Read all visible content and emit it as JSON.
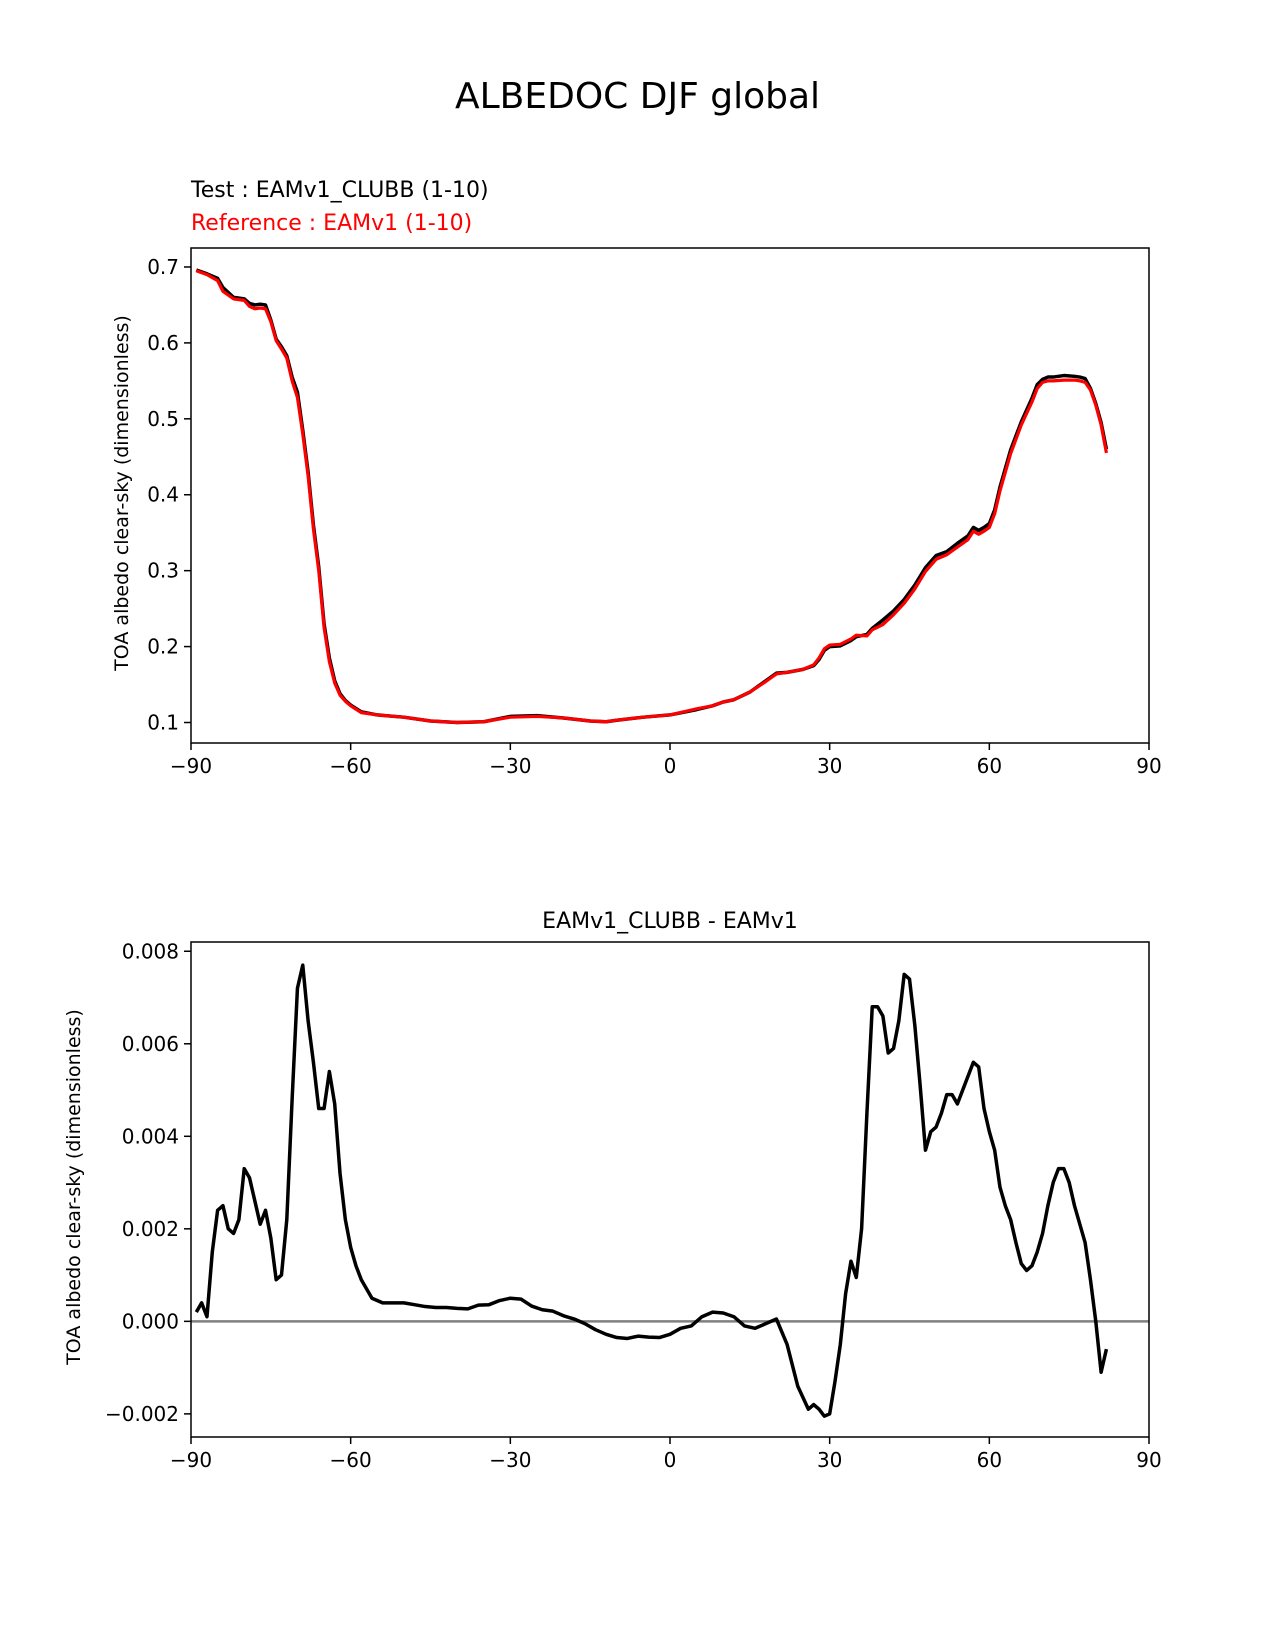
{
  "figure": {
    "suptitle": "ALBEDOC DJF global"
  },
  "colors": {
    "test": "#000000",
    "reference": "#ff0000",
    "zero_line": "#808080"
  },
  "chart_data": [
    {
      "type": "line",
      "title_test": "Test : EAMv1_CLUBB (1-10)",
      "title_reference": "Reference : EAMv1 (1-10)",
      "xlabel": "",
      "ylabel": "TOA albedo clear-sky (dimensionless)",
      "xlim": [
        -90,
        90
      ],
      "ylim": [
        0.073,
        0.725
      ],
      "xticks": [
        -90,
        -60,
        -30,
        0,
        30,
        60,
        90
      ],
      "xtick_labels": [
        "−90",
        "−60",
        "−30",
        "0",
        "30",
        "60",
        "90"
      ],
      "yticks": [
        0.1,
        0.2,
        0.3,
        0.4,
        0.5,
        0.6,
        0.7
      ],
      "ytick_labels": [
        "0.1",
        "0.2",
        "0.3",
        "0.4",
        "0.5",
        "0.6",
        "0.7"
      ],
      "x": [
        -89,
        -87,
        -85,
        -84,
        -82,
        -80,
        -79,
        -78,
        -77,
        -76,
        -75,
        -74,
        -73,
        -72,
        -71,
        -70,
        -69,
        -68,
        -67,
        -66,
        -65,
        -64,
        -63,
        -62,
        -61,
        -60,
        -58,
        -55,
        -50,
        -45,
        -40,
        -35,
        -30,
        -25,
        -20,
        -15,
        -12,
        -10,
        -5,
        0,
        5,
        8,
        10,
        12,
        15,
        18,
        20,
        22,
        25,
        27,
        28,
        29,
        30,
        32,
        34,
        35,
        37,
        38,
        40,
        42,
        44,
        46,
        48,
        50,
        52,
        54,
        56,
        57,
        58,
        59,
        60,
        61,
        62,
        64,
        66,
        68,
        69,
        70,
        71,
        72,
        74,
        76,
        77,
        78,
        79,
        80,
        81,
        82
      ],
      "series": [
        {
          "name": "Test : EAMv1_CLUBB (1-10)",
          "color": "#000000",
          "values": [
            0.696,
            0.691,
            0.685,
            0.673,
            0.66,
            0.658,
            0.652,
            0.65,
            0.651,
            0.65,
            0.63,
            0.605,
            0.595,
            0.583,
            0.555,
            0.535,
            0.485,
            0.43,
            0.36,
            0.305,
            0.23,
            0.185,
            0.155,
            0.138,
            0.129,
            0.123,
            0.114,
            0.11,
            0.107,
            0.102,
            0.1,
            0.101,
            0.108,
            0.109,
            0.106,
            0.102,
            0.101,
            0.103,
            0.107,
            0.11,
            0.117,
            0.122,
            0.127,
            0.13,
            0.14,
            0.155,
            0.165,
            0.166,
            0.17,
            0.175,
            0.183,
            0.195,
            0.2,
            0.201,
            0.208,
            0.213,
            0.216,
            0.224,
            0.235,
            0.247,
            0.262,
            0.281,
            0.304,
            0.32,
            0.325,
            0.336,
            0.346,
            0.357,
            0.353,
            0.357,
            0.362,
            0.38,
            0.41,
            0.459,
            0.496,
            0.527,
            0.545,
            0.552,
            0.555,
            0.555,
            0.557,
            0.556,
            0.555,
            0.553,
            0.54,
            0.52,
            0.495,
            0.46
          ]
        },
        {
          "name": "Reference : EAMv1 (1-10)",
          "color": "#ff0000",
          "values": [
            0.695,
            0.69,
            0.682,
            0.668,
            0.658,
            0.656,
            0.648,
            0.645,
            0.646,
            0.645,
            0.628,
            0.603,
            0.592,
            0.58,
            0.55,
            0.528,
            0.48,
            0.425,
            0.355,
            0.3,
            0.225,
            0.18,
            0.152,
            0.136,
            0.128,
            0.122,
            0.113,
            0.11,
            0.107,
            0.102,
            0.1,
            0.101,
            0.107,
            0.108,
            0.106,
            0.102,
            0.101,
            0.103,
            0.107,
            0.11,
            0.118,
            0.122,
            0.127,
            0.13,
            0.14,
            0.154,
            0.164,
            0.166,
            0.17,
            0.176,
            0.185,
            0.197,
            0.202,
            0.203,
            0.21,
            0.215,
            0.214,
            0.222,
            0.229,
            0.242,
            0.257,
            0.276,
            0.299,
            0.315,
            0.321,
            0.331,
            0.341,
            0.352,
            0.348,
            0.352,
            0.357,
            0.375,
            0.405,
            0.454,
            0.492,
            0.522,
            0.54,
            0.548,
            0.55,
            0.55,
            0.551,
            0.551,
            0.55,
            0.548,
            0.538,
            0.518,
            0.492,
            0.455
          ]
        }
      ]
    },
    {
      "type": "line",
      "title": "EAMv1_CLUBB - EAMv1",
      "xlabel": "",
      "ylabel": "TOA albedo clear-sky (dimensionless)",
      "xlim": [
        -90,
        90
      ],
      "ylim": [
        -0.0025,
        0.0082
      ],
      "xticks": [
        -90,
        -60,
        -30,
        0,
        30,
        60,
        90
      ],
      "xtick_labels": [
        "−90",
        "−60",
        "−30",
        "0",
        "30",
        "60",
        "90"
      ],
      "yticks": [
        -0.002,
        0.0,
        0.002,
        0.004,
        0.006,
        0.008
      ],
      "ytick_labels": [
        "−0.002",
        "0.000",
        "0.002",
        "0.004",
        "0.006",
        "0.008"
      ],
      "zero_line": 0.0,
      "x": [
        -89,
        -88,
        -87,
        -86,
        -85,
        -84,
        -83,
        -82,
        -81,
        -80,
        -79,
        -78,
        -77,
        -76,
        -75,
        -74,
        -73,
        -72,
        -71,
        -70,
        -69,
        -68,
        -67,
        -66,
        -65,
        -64,
        -63,
        -62,
        -61,
        -60,
        -59,
        -58,
        -56,
        -54,
        -52,
        -50,
        -48,
        -46,
        -44,
        -42,
        -40,
        -38,
        -36,
        -34,
        -32,
        -30,
        -28,
        -26,
        -24,
        -22,
        -20,
        -18,
        -16,
        -14,
        -12,
        -10,
        -8,
        -6,
        -4,
        -2,
        0,
        2,
        4,
        6,
        8,
        10,
        12,
        14,
        16,
        18,
        20,
        22,
        24,
        26,
        27,
        28,
        29,
        30,
        31,
        32,
        33,
        34,
        35,
        36,
        37,
        38,
        39,
        40,
        41,
        42,
        43,
        44,
        45,
        46,
        47,
        48,
        49,
        50,
        51,
        52,
        53,
        54,
        55,
        56,
        57,
        58,
        59,
        60,
        61,
        62,
        63,
        64,
        65,
        66,
        67,
        68,
        69,
        70,
        71,
        72,
        73,
        74,
        75,
        76,
        77,
        78,
        79,
        80,
        81,
        82
      ],
      "series": [
        {
          "name": "EAMv1_CLUBB - EAMv1",
          "color": "#000000",
          "values": [
            0.0002,
            0.0004,
            0.0001,
            0.0015,
            0.0024,
            0.0025,
            0.002,
            0.0019,
            0.0022,
            0.0033,
            0.0031,
            0.0026,
            0.0021,
            0.0024,
            0.0018,
            0.0009,
            0.001,
            0.0022,
            0.0048,
            0.0072,
            0.0077,
            0.0065,
            0.0056,
            0.0046,
            0.0046,
            0.0054,
            0.0047,
            0.0032,
            0.0022,
            0.0016,
            0.0012,
            0.0009,
            0.0005,
            0.0004,
            0.0004,
            0.0004,
            0.00036,
            0.00032,
            0.0003,
            0.0003,
            0.00028,
            0.00027,
            0.00035,
            0.00036,
            0.00045,
            0.0005,
            0.00048,
            0.00033,
            0.00025,
            0.00022,
            0.00012,
            5e-05,
            -5e-05,
            -0.00018,
            -0.00028,
            -0.00035,
            -0.00037,
            -0.00032,
            -0.00034,
            -0.00035,
            -0.00028,
            -0.00015,
            -0.0001,
            0.0001,
            0.0002,
            0.00018,
            0.0001,
            -0.0001,
            -0.00015,
            -5e-05,
            5e-05,
            -0.0005,
            -0.0014,
            -0.0019,
            -0.0018,
            -0.0019,
            -0.00205,
            -0.002,
            -0.0013,
            -0.0005,
            0.0006,
            0.0013,
            0.00095,
            0.002,
            0.0045,
            0.0068,
            0.0068,
            0.0066,
            0.0058,
            0.0059,
            0.0065,
            0.0075,
            0.0074,
            0.0064,
            0.0051,
            0.0037,
            0.0041,
            0.0042,
            0.0045,
            0.0049,
            0.0049,
            0.0047,
            0.005,
            0.0053,
            0.0056,
            0.0055,
            0.0046,
            0.0041,
            0.0037,
            0.0029,
            0.0025,
            0.0022,
            0.0017,
            0.00125,
            0.0011,
            0.0012,
            0.0015,
            0.0019,
            0.0025,
            0.003,
            0.0033,
            0.0033,
            0.003,
            0.0025,
            0.0021,
            0.0017,
            0.0009,
            0.0,
            -0.0011,
            -0.0006
          ]
        }
      ]
    }
  ]
}
